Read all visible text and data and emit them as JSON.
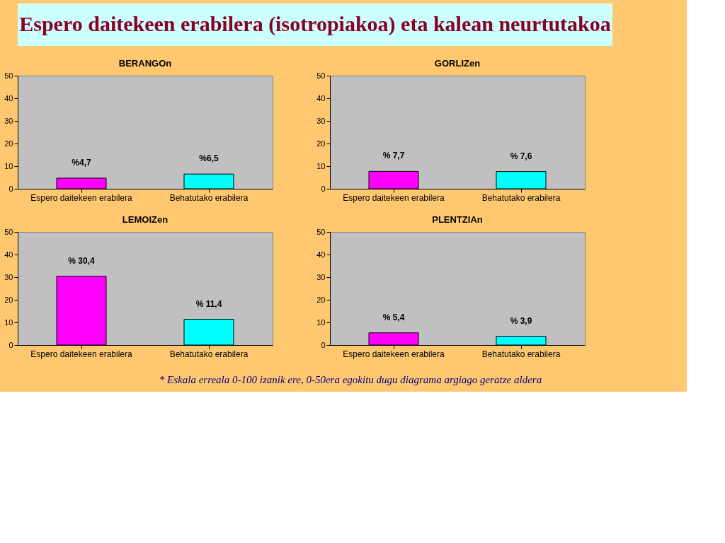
{
  "chart_data": [
    {
      "type": "other",
      "title": "Espero daitekeen erabilera (isotropiakoa) eta kalean neurtutakoa"
    },
    {
      "type": "bar",
      "title": "BERANGOn",
      "categories": [
        "Espero daitekeen erabilera",
        "Behatutako erabilera"
      ],
      "values": [
        4.7,
        6.5
      ],
      "colors": [
        "#ff00ff",
        "#00ffff"
      ],
      "value_labels": [
        "%4,7",
        "%6,5"
      ],
      "ylim": [
        0,
        50
      ],
      "yticks": [
        0,
        10,
        20,
        30,
        40,
        50
      ],
      "grid": false
    },
    {
      "type": "bar",
      "title": "GORLIZen",
      "categories": [
        "Espero daitekeen erabilera",
        "Behatutako erabilera"
      ],
      "values": [
        7.7,
        7.6
      ],
      "colors": [
        "#ff00ff",
        "#00ffff"
      ],
      "value_labels": [
        "% 7,7",
        "% 7,6"
      ],
      "ylim": [
        0,
        50
      ],
      "yticks": [
        0,
        10,
        20,
        30,
        40,
        50
      ],
      "grid": false
    },
    {
      "type": "bar",
      "title": "LEMOIZen",
      "categories": [
        "Espero daitekeen erabilera",
        "Behatutako erabilera"
      ],
      "values": [
        30.4,
        11.4
      ],
      "colors": [
        "#ff00ff",
        "#00ffff"
      ],
      "value_labels": [
        "% 30,4",
        "% 11,4"
      ],
      "ylim": [
        0,
        50
      ],
      "yticks": [
        0,
        10,
        20,
        30,
        40,
        50
      ],
      "grid": false
    },
    {
      "type": "bar",
      "title": "PLENTZIAn",
      "categories": [
        "Espero daitekeen erabilera",
        "Behatutako erabilera"
      ],
      "values": [
        5.4,
        3.9
      ],
      "colors": [
        "#ff00ff",
        "#00ffff"
      ],
      "value_labels": [
        "% 5,4",
        "% 3,9"
      ],
      "ylim": [
        0,
        50
      ],
      "yticks": [
        0,
        10,
        20,
        30,
        40,
        50
      ],
      "grid": false
    },
    {
      "type": "other",
      "annotations": [
        "* Eskala erreala 0-100 izanik ere, 0-50era egokitu dugu diagrama argiago geratze aldera"
      ]
    }
  ]
}
